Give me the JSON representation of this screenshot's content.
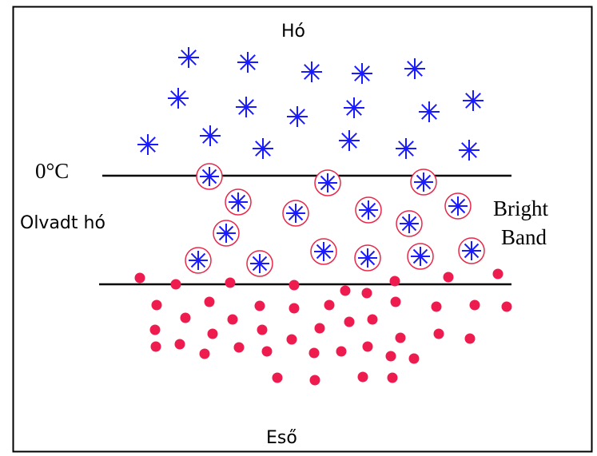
{
  "labels": {
    "top": "Hó",
    "temperature": "0°C",
    "melting": "Olvadt hó",
    "bright_band": [
      "Bright",
      "Band"
    ],
    "bottom": "Eső"
  }
}
